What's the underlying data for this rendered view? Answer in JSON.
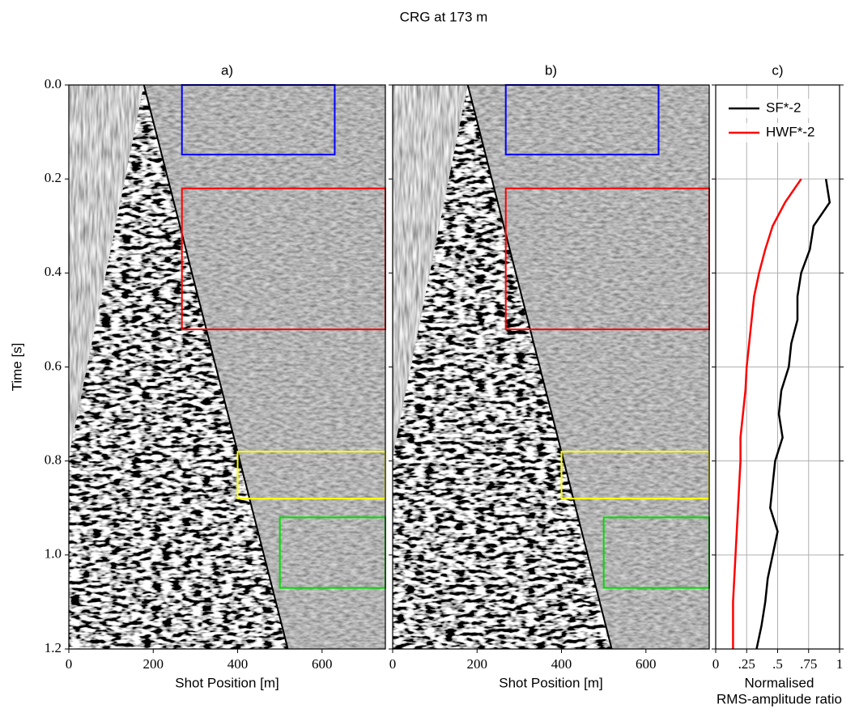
{
  "title": "CRG at 173 m",
  "chart_data": [
    {
      "type": "image",
      "title": "a)",
      "xlabel": "Shot Position [m]",
      "ylabel": "Time [s]",
      "xlim": [
        0,
        750
      ],
      "ylim": [
        1.2,
        0
      ],
      "xticks": [
        0,
        200,
        400,
        600
      ],
      "yticks": [
        {
          "value": 0,
          "label": "0.0"
        },
        0.2,
        0.4,
        0.6,
        0.8,
        {
          "value": 1,
          "label": "1.0"
        },
        1.2
      ],
      "line": {
        "color": "#000000",
        "x": [
          178,
          519
        ],
        "y": [
          0,
          1.2
        ]
      },
      "regions": [
        {
          "color": "#0000ff",
          "x": [
            268,
            630
          ],
          "y": [
            0,
            0.148
          ]
        },
        {
          "color": "#ff0000",
          "x": [
            268,
            750
          ],
          "y": [
            0.22,
            0.52
          ]
        },
        {
          "color": "#ffff00",
          "x": [
            400,
            750
          ],
          "y": [
            0.78,
            0.88
          ]
        },
        {
          "color": "#00dd00",
          "x": [
            500,
            750
          ],
          "y": [
            0.92,
            1.07
          ]
        }
      ]
    },
    {
      "type": "image",
      "title": "b)",
      "xlabel": "Shot Position [m]",
      "xlim": [
        0,
        750
      ],
      "ylim": [
        1.2,
        0
      ],
      "xticks": [
        0,
        200,
        400,
        600
      ],
      "line": {
        "color": "#000000",
        "x": [
          178,
          519
        ],
        "y": [
          0,
          1.2
        ]
      },
      "regions": [
        {
          "color": "#0000ff",
          "x": [
            268,
            630
          ],
          "y": [
            0,
            0.148
          ]
        },
        {
          "color": "#ff0000",
          "x": [
            268,
            750
          ],
          "y": [
            0.22,
            0.52
          ]
        },
        {
          "color": "#ffff00",
          "x": [
            400,
            750
          ],
          "y": [
            0.78,
            0.88
          ]
        },
        {
          "color": "#00dd00",
          "x": [
            500,
            750
          ],
          "y": [
            0.92,
            1.07
          ]
        }
      ]
    },
    {
      "type": "line",
      "title": "c)",
      "xlabel": [
        "Normalised",
        "RMS-amplitude ratio"
      ],
      "xlim": [
        0,
        1
      ],
      "ylim": [
        1.2,
        0
      ],
      "xticks": [
        0,
        {
          "value": 0.25,
          "label": ".25"
        },
        {
          "value": 0.5,
          "label": ".5"
        },
        {
          "value": 0.75,
          "label": ".75"
        },
        1
      ],
      "grid": true,
      "legend": "upper right",
      "y": [
        0.2,
        0.25,
        0.3,
        0.35,
        0.4,
        0.45,
        0.5,
        0.55,
        0.6,
        0.65,
        0.7,
        0.75,
        0.8,
        0.85,
        0.9,
        0.95,
        1.0,
        1.05,
        1.1,
        1.15,
        1.2
      ],
      "series": [
        {
          "name": "SF*-2",
          "color": "#000000",
          "values": [
            0.89,
            0.92,
            0.79,
            0.76,
            0.69,
            0.66,
            0.66,
            0.61,
            0.59,
            0.53,
            0.51,
            0.54,
            0.48,
            0.46,
            0.44,
            0.5,
            0.46,
            0.42,
            0.4,
            0.37,
            0.33
          ]
        },
        {
          "name": "HWF*-2",
          "color": "#ff0000",
          "values": [
            0.69,
            0.56,
            0.46,
            0.4,
            0.35,
            0.31,
            0.29,
            0.27,
            0.25,
            0.24,
            0.22,
            0.2,
            0.2,
            0.19,
            0.18,
            0.17,
            0.16,
            0.15,
            0.14,
            0.14,
            0.14
          ]
        }
      ]
    }
  ]
}
